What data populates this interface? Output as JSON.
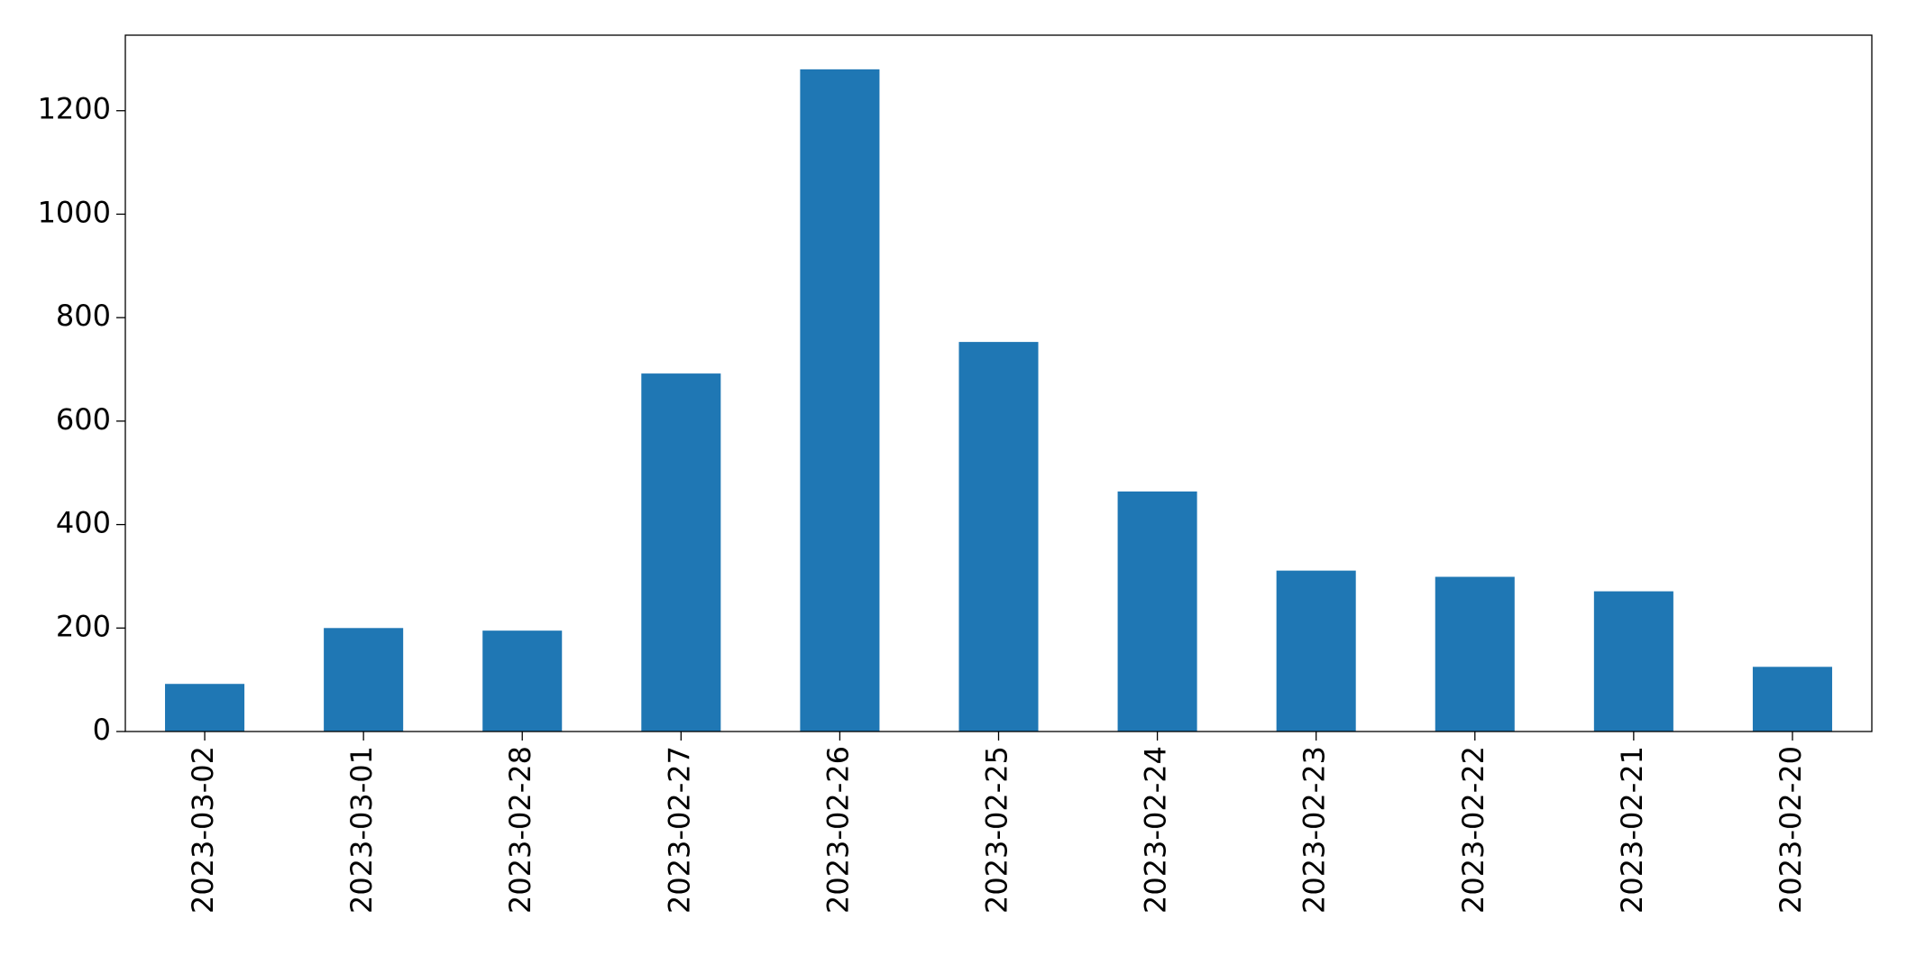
{
  "chart_data": {
    "type": "bar",
    "categories": [
      "2023-03-02",
      "2023-03-01",
      "2023-02-28",
      "2023-02-27",
      "2023-02-26",
      "2023-02-25",
      "2023-02-24",
      "2023-02-23",
      "2023-02-22",
      "2023-02-21",
      "2023-02-20"
    ],
    "values": [
      92,
      200,
      195,
      692,
      1280,
      753,
      464,
      311,
      299,
      271,
      125
    ],
    "color": "#1f77b4",
    "ylim": [
      0,
      1346
    ],
    "yticks": [
      0,
      200,
      400,
      600,
      800,
      1000,
      1200
    ],
    "grid": false
  }
}
